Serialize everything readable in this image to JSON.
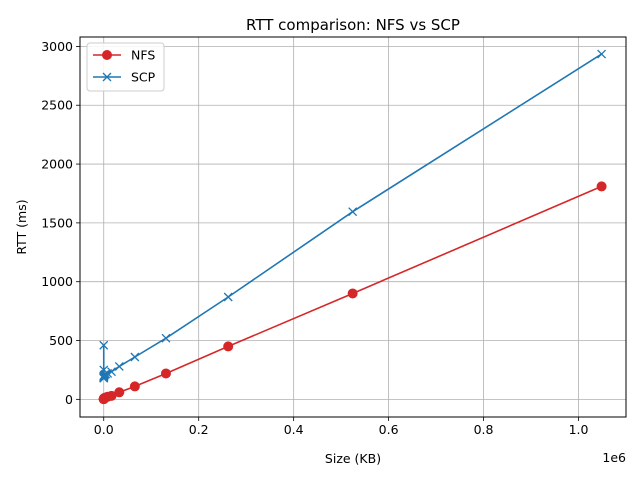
{
  "chart_data": {
    "type": "line",
    "title": "RTT comparison: NFS vs SCP",
    "xlabel": "Size (KB)",
    "ylabel": "RTT (ms)",
    "x_offset_label": "1e6",
    "xlim": [
      -50000,
      1100000
    ],
    "ylim": [
      -150,
      3080
    ],
    "grid": true,
    "legend_position": "upper-left",
    "x_ticks": [
      0,
      200000,
      400000,
      600000,
      800000,
      1000000
    ],
    "x_tick_labels": [
      "0.0",
      "0.2",
      "0.4",
      "0.6",
      "0.8",
      "1.0"
    ],
    "y_ticks": [
      0,
      500,
      1000,
      1500,
      2000,
      2500,
      3000
    ],
    "y_tick_labels": [
      "0",
      "500",
      "1000",
      "1500",
      "2000",
      "2500",
      "3000"
    ],
    "series": [
      {
        "name": "NFS",
        "color": "#d62728",
        "marker": "circle",
        "x": [
          1,
          2,
          4,
          8,
          16,
          32,
          64,
          128,
          256,
          512,
          1024,
          2048,
          4096,
          8192,
          16384,
          32768,
          65536,
          131072,
          262144,
          524288,
          1048576
        ],
        "y": [
          2,
          2,
          2,
          2,
          3,
          3,
          4,
          5,
          6,
          8,
          10,
          12,
          16,
          22,
          30,
          60,
          110,
          220,
          450,
          900,
          1810
        ]
      },
      {
        "name": "SCP",
        "color": "#1f77b4",
        "marker": "x",
        "x": [
          1,
          2,
          4,
          8,
          16,
          32,
          64,
          128,
          256,
          512,
          1024,
          2048,
          4096,
          8192,
          16384,
          32768,
          65536,
          131072,
          262144,
          524288,
          1048576
        ],
        "y": [
          460,
          250,
          200,
          190,
          180,
          180,
          185,
          190,
          195,
          200,
          205,
          210,
          215,
          220,
          235,
          280,
          360,
          520,
          870,
          1595,
          2935
        ]
      }
    ]
  }
}
